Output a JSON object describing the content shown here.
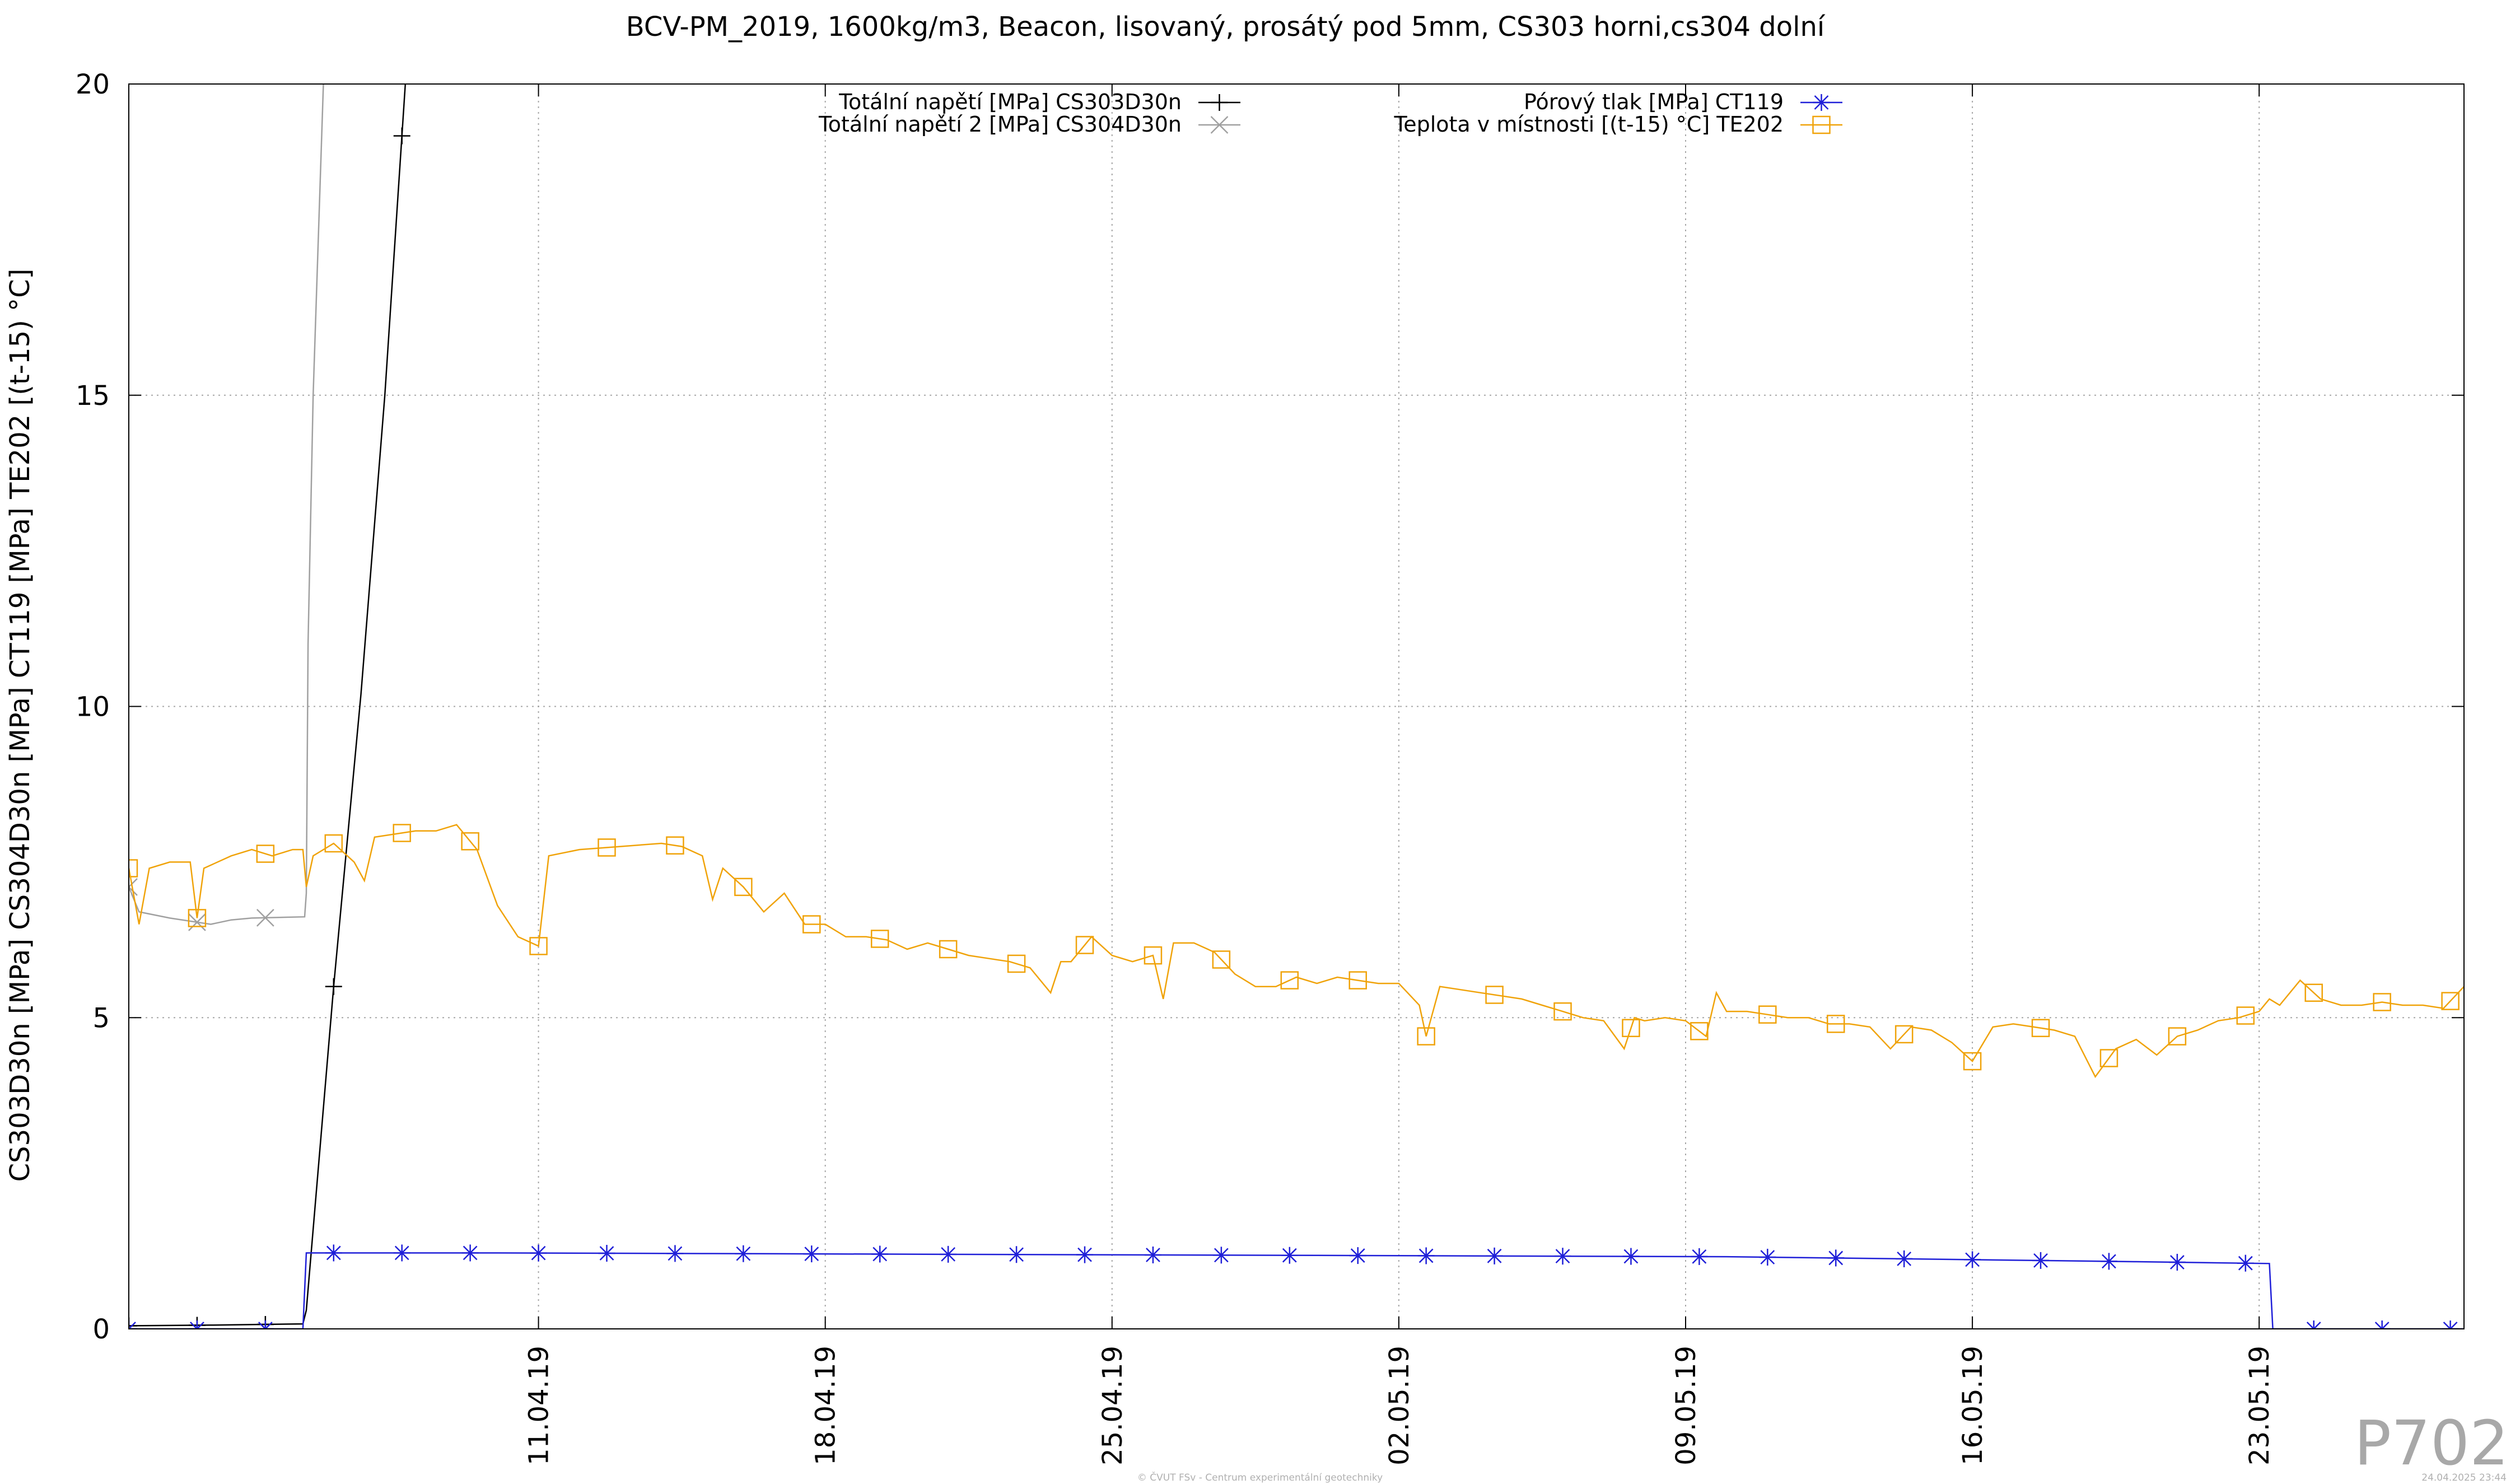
{
  "chart_data": {
    "type": "line",
    "title": "BCV-PM_2019, 1600kg/m3, Beacon, lisovaný, prosátý pod 5mm, CS303 horni,cs304 dolní",
    "ylabel": "CS303D30n [MPa] CS304D30n [MPa] CT119 [MPa] TE202 [(t-15) °C]",
    "xlabel": "",
    "x_start": "2019-04-01",
    "x_end": "2019-05-28",
    "ylim": [
      0,
      20
    ],
    "y_ticks": [
      "0",
      "5",
      "10",
      "15",
      "20"
    ],
    "x_ticks": [
      {
        "x": "2019-04-11",
        "label": "11.04.19"
      },
      {
        "x": "2019-04-18",
        "label": "18.04.19"
      },
      {
        "x": "2019-04-25",
        "label": "25.04.19"
      },
      {
        "x": "2019-05-02",
        "label": "02.05.19"
      },
      {
        "x": "2019-05-09",
        "label": "09.05.19"
      },
      {
        "x": "2019-05-16",
        "label": "16.05.19"
      },
      {
        "x": "2019-05-23",
        "label": "23.05.19"
      }
    ],
    "grid": true,
    "legend_position": "top",
    "series": [
      {
        "name": "Totální napětí [MPa] CS303D30n",
        "color": "#000000",
        "marker": "plus",
        "points": [
          [
            "2019-04-01T00:00",
            0.05
          ],
          [
            "2019-04-03T00:00",
            0.06
          ],
          [
            "2019-04-05T06:00",
            0.08
          ],
          [
            "2019-04-05T08:00",
            0.3
          ],
          [
            "2019-04-06T00:00",
            5.5
          ],
          [
            "2019-04-06T16:00",
            10.2
          ],
          [
            "2019-04-07T06:00",
            15.0
          ],
          [
            "2019-04-07T18:00",
            20.0
          ]
        ]
      },
      {
        "name": "Totální napětí 2 [MPa] CS304D30n",
        "color": "#a0a0a0",
        "marker": "cross",
        "points": [
          [
            "2019-04-01T00:00",
            7.1
          ],
          [
            "2019-04-01T06:00",
            6.7
          ],
          [
            "2019-04-02T00:00",
            6.6
          ],
          [
            "2019-04-03T00:00",
            6.5
          ],
          [
            "2019-04-03T12:00",
            6.57
          ],
          [
            "2019-04-04T00:00",
            6.6
          ],
          [
            "2019-04-05T07:00",
            6.62
          ],
          [
            "2019-04-05T08:00",
            7.0
          ],
          [
            "2019-04-05T09:00",
            11.0
          ],
          [
            "2019-04-05T12:00",
            15.0
          ],
          [
            "2019-04-05T18:00",
            20.0
          ]
        ]
      },
      {
        "name": "Pórový tlak [MPa] CT119",
        "color": "#1f1fd8",
        "marker": "asterisk",
        "points": [
          [
            "2019-04-01T00:00",
            0.0
          ],
          [
            "2019-04-05T06:00",
            0.0
          ],
          [
            "2019-04-05T08:00",
            1.22
          ],
          [
            "2019-04-10T00:00",
            1.22
          ],
          [
            "2019-04-15T00:00",
            1.21
          ],
          [
            "2019-04-20T00:00",
            1.2
          ],
          [
            "2019-04-25T00:00",
            1.19
          ],
          [
            "2019-04-30T00:00",
            1.18
          ],
          [
            "2019-05-05T00:00",
            1.17
          ],
          [
            "2019-05-10T00:00",
            1.16
          ],
          [
            "2019-05-15T00:00",
            1.12
          ],
          [
            "2019-05-20T00:00",
            1.08
          ],
          [
            "2019-05-23T06:00",
            1.05
          ],
          [
            "2019-05-23T08:00",
            0.0
          ],
          [
            "2019-05-28T00:00",
            0.0
          ]
        ]
      },
      {
        "name": "Teplota v místnosti [(t-15) °C] TE202",
        "color": "#f0a30a",
        "marker": "square",
        "points": [
          [
            "2019-04-01T00:00",
            7.4
          ],
          [
            "2019-04-01T06:00",
            6.5
          ],
          [
            "2019-04-01T12:00",
            7.4
          ],
          [
            "2019-04-02T00:00",
            7.5
          ],
          [
            "2019-04-02T12:00",
            7.5
          ],
          [
            "2019-04-02T16:00",
            6.6
          ],
          [
            "2019-04-02T20:00",
            7.4
          ],
          [
            "2019-04-03T12:00",
            7.6
          ],
          [
            "2019-04-04T00:00",
            7.7
          ],
          [
            "2019-04-04T12:00",
            7.6
          ],
          [
            "2019-04-05T00:00",
            7.7
          ],
          [
            "2019-04-05T06:00",
            7.7
          ],
          [
            "2019-04-05T08:00",
            7.1
          ],
          [
            "2019-04-05T12:00",
            7.6
          ],
          [
            "2019-04-06T00:00",
            7.8
          ],
          [
            "2019-04-06T12:00",
            7.5
          ],
          [
            "2019-04-06T18:00",
            7.2
          ],
          [
            "2019-04-07T00:00",
            7.9
          ],
          [
            "2019-04-08T00:00",
            8.0
          ],
          [
            "2019-04-08T12:00",
            8.0
          ],
          [
            "2019-04-09T00:00",
            8.1
          ],
          [
            "2019-04-09T12:00",
            7.7
          ],
          [
            "2019-04-10T00:00",
            6.8
          ],
          [
            "2019-04-10T12:00",
            6.3
          ],
          [
            "2019-04-11T00:00",
            6.15
          ],
          [
            "2019-04-11T06:00",
            7.6
          ],
          [
            "2019-04-12T00:00",
            7.7
          ],
          [
            "2019-04-13T00:00",
            7.75
          ],
          [
            "2019-04-14T00:00",
            7.8
          ],
          [
            "2019-04-14T12:00",
            7.75
          ],
          [
            "2019-04-15T00:00",
            7.6
          ],
          [
            "2019-04-15T06:00",
            6.9
          ],
          [
            "2019-04-15T12:00",
            7.4
          ],
          [
            "2019-04-16T00:00",
            7.1
          ],
          [
            "2019-04-16T12:00",
            6.7
          ],
          [
            "2019-04-17T00:00",
            7.0
          ],
          [
            "2019-04-17T12:00",
            6.5
          ],
          [
            "2019-04-18T00:00",
            6.5
          ],
          [
            "2019-04-18T12:00",
            6.3
          ],
          [
            "2019-04-19T00:00",
            6.3
          ],
          [
            "2019-04-19T12:00",
            6.25
          ],
          [
            "2019-04-20T00:00",
            6.1
          ],
          [
            "2019-04-20T12:00",
            6.2
          ],
          [
            "2019-04-21T00:00",
            6.1
          ],
          [
            "2019-04-21T12:00",
            6.0
          ],
          [
            "2019-04-22T00:00",
            5.95
          ],
          [
            "2019-04-22T12:00",
            5.9
          ],
          [
            "2019-04-23T00:00",
            5.8
          ],
          [
            "2019-04-23T12:00",
            5.4
          ],
          [
            "2019-04-23T18:00",
            5.9
          ],
          [
            "2019-04-24T00:00",
            5.9
          ],
          [
            "2019-04-24T12:00",
            6.3
          ],
          [
            "2019-04-25T00:00",
            6.0
          ],
          [
            "2019-04-25T12:00",
            5.9
          ],
          [
            "2019-04-26T00:00",
            6.0
          ],
          [
            "2019-04-26T06:00",
            5.3
          ],
          [
            "2019-04-26T12:00",
            6.2
          ],
          [
            "2019-04-27T00:00",
            6.2
          ],
          [
            "2019-04-27T12:00",
            6.05
          ],
          [
            "2019-04-28T00:00",
            5.7
          ],
          [
            "2019-04-28T12:00",
            5.5
          ],
          [
            "2019-04-29T00:00",
            5.5
          ],
          [
            "2019-04-29T12:00",
            5.65
          ],
          [
            "2019-04-30T00:00",
            5.55
          ],
          [
            "2019-04-30T12:00",
            5.65
          ],
          [
            "2019-05-01T00:00",
            5.6
          ],
          [
            "2019-05-01T12:00",
            5.55
          ],
          [
            "2019-05-02T00:00",
            5.55
          ],
          [
            "2019-05-02T12:00",
            5.2
          ],
          [
            "2019-05-02T16:00",
            4.7
          ],
          [
            "2019-05-03T00:00",
            5.5
          ],
          [
            "2019-05-03T12:00",
            5.45
          ],
          [
            "2019-05-04T00:00",
            5.4
          ],
          [
            "2019-05-04T12:00",
            5.35
          ],
          [
            "2019-05-05T00:00",
            5.3
          ],
          [
            "2019-05-05T12:00",
            5.2
          ],
          [
            "2019-05-06T00:00",
            5.1
          ],
          [
            "2019-05-06T12:00",
            5.0
          ],
          [
            "2019-05-07T00:00",
            4.95
          ],
          [
            "2019-05-07T12:00",
            4.5
          ],
          [
            "2019-05-07T18:00",
            5.0
          ],
          [
            "2019-05-08T00:00",
            4.95
          ],
          [
            "2019-05-08T12:00",
            5.0
          ],
          [
            "2019-05-09T00:00",
            4.95
          ],
          [
            "2019-05-09T12:00",
            4.7
          ],
          [
            "2019-05-09T18:00",
            5.4
          ],
          [
            "2019-05-10T00:00",
            5.1
          ],
          [
            "2019-05-10T12:00",
            5.1
          ],
          [
            "2019-05-11T00:00",
            5.05
          ],
          [
            "2019-05-11T12:00",
            5.0
          ],
          [
            "2019-05-12T00:00",
            5.0
          ],
          [
            "2019-05-12T12:00",
            4.9
          ],
          [
            "2019-05-13T00:00",
            4.9
          ],
          [
            "2019-05-13T12:00",
            4.85
          ],
          [
            "2019-05-14T00:00",
            4.5
          ],
          [
            "2019-05-14T12:00",
            4.85
          ],
          [
            "2019-05-15T00:00",
            4.8
          ],
          [
            "2019-05-15T12:00",
            4.6
          ],
          [
            "2019-05-16T00:00",
            4.3
          ],
          [
            "2019-05-16T12:00",
            4.85
          ],
          [
            "2019-05-17T00:00",
            4.9
          ],
          [
            "2019-05-17T12:00",
            4.85
          ],
          [
            "2019-05-18T00:00",
            4.8
          ],
          [
            "2019-05-18T12:00",
            4.7
          ],
          [
            "2019-05-19T00:00",
            4.05
          ],
          [
            "2019-05-19T12:00",
            4.5
          ],
          [
            "2019-05-20T00:00",
            4.65
          ],
          [
            "2019-05-20T12:00",
            4.4
          ],
          [
            "2019-05-21T00:00",
            4.7
          ],
          [
            "2019-05-21T12:00",
            4.8
          ],
          [
            "2019-05-22T00:00",
            4.95
          ],
          [
            "2019-05-22T12:00",
            5.0
          ],
          [
            "2019-05-23T00:00",
            5.1
          ],
          [
            "2019-05-23T06:00",
            5.3
          ],
          [
            "2019-05-23T12:00",
            5.2
          ],
          [
            "2019-05-24T00:00",
            5.6
          ],
          [
            "2019-05-24T12:00",
            5.3
          ],
          [
            "2019-05-25T00:00",
            5.2
          ],
          [
            "2019-05-25T12:00",
            5.2
          ],
          [
            "2019-05-26T00:00",
            5.25
          ],
          [
            "2019-05-26T12:00",
            5.2
          ],
          [
            "2019-05-27T00:00",
            5.2
          ],
          [
            "2019-05-27T12:00",
            5.15
          ],
          [
            "2019-05-28T00:00",
            5.5
          ]
        ]
      }
    ]
  },
  "panel_label": "P702",
  "footer_credit": "© ČVUT FSv - Centrum experimentální geotechniky",
  "footer_timestamp": "24.04.2025 23:44"
}
